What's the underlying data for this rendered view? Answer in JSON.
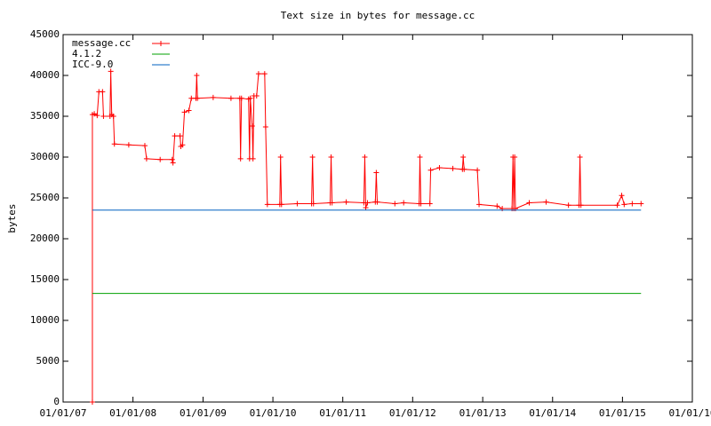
{
  "chart_data": {
    "type": "line",
    "title": "Text size in bytes for message.cc",
    "y_label": "bytes",
    "xlim": [
      "2007-01-01",
      "2016-01-01"
    ],
    "xticks": [
      {
        "value": "2007-01-01",
        "label": "01/01/07"
      },
      {
        "value": "2008-01-01",
        "label": "01/01/08"
      },
      {
        "value": "2009-01-01",
        "label": "01/01/09"
      },
      {
        "value": "2010-01-01",
        "label": "01/01/10"
      },
      {
        "value": "2011-01-01",
        "label": "01/01/11"
      },
      {
        "value": "2012-01-01",
        "label": "01/01/12"
      },
      {
        "value": "2013-01-01",
        "label": "01/01/13"
      },
      {
        "value": "2014-01-01",
        "label": "01/01/14"
      },
      {
        "value": "2015-01-01",
        "label": "01/01/15"
      },
      {
        "value": "2016-01-01",
        "label": "01/01/16"
      }
    ],
    "ylim": [
      0,
      45000
    ],
    "yticks": [
      0,
      5000,
      10000,
      15000,
      20000,
      25000,
      30000,
      35000,
      40000,
      45000
    ],
    "legend_position": "top-left",
    "series": [
      {
        "name": "message.cc",
        "color": "#ff0000",
        "marker": "+",
        "x": [
          "2007-06-03",
          "2007-06-03",
          "2007-06-13",
          "2007-06-28",
          "2007-07-07",
          "2007-07-26",
          "2007-07-31",
          "2007-09-03",
          "2007-09-07",
          "2007-09-12",
          "2007-09-21",
          "2007-09-26",
          "2007-12-10",
          "2008-03-03",
          "2008-03-12",
          "2008-05-22",
          "2008-07-24",
          "2008-07-28",
          "2008-08-06",
          "2008-09-03",
          "2008-09-07",
          "2008-09-16",
          "2008-09-26",
          "2008-10-19",
          "2008-11-01",
          "2008-11-25",
          "2008-11-29",
          "2008-12-03",
          "2009-02-23",
          "2009-05-27",
          "2009-07-12",
          "2009-07-16",
          "2009-07-21",
          "2009-08-27",
          "2009-09-01",
          "2009-09-05",
          "2009-09-15",
          "2009-09-19",
          "2009-09-24",
          "2009-10-08",
          "2009-10-18",
          "2009-11-19",
          "2009-11-24",
          "2009-12-03",
          "2010-02-06",
          "2010-02-10",
          "2010-02-15",
          "2010-05-08",
          "2010-07-22",
          "2010-07-27",
          "2010-08-01",
          "2010-10-27",
          "2010-11-01",
          "2010-11-06",
          "2011-01-19",
          "2011-04-21",
          "2011-04-26",
          "2011-05-01",
          "2011-05-10",
          "2011-06-20",
          "2011-06-25",
          "2011-06-30",
          "2011-09-30",
          "2011-11-15",
          "2012-02-04",
          "2012-02-08",
          "2012-02-13",
          "2012-03-31",
          "2012-04-04",
          "2012-05-20",
          "2012-07-29",
          "2012-09-17",
          "2012-09-21",
          "2012-09-26",
          "2012-12-04",
          "2012-12-13",
          "2013-03-17",
          "2013-04-13",
          "2013-06-03",
          "2013-06-08",
          "2013-06-12",
          "2013-06-17",
          "2013-06-21",
          "2013-09-01",
          "2013-11-28",
          "2014-03-25",
          "2014-05-19",
          "2014-05-24",
          "2014-05-29",
          "2014-12-05",
          "2014-12-28",
          "2015-01-10",
          "2015-02-21",
          "2015-04-08"
        ],
        "values": [
          0,
          35200,
          35300,
          35100,
          38000,
          38000,
          35000,
          35000,
          40500,
          35200,
          35000,
          31600,
          31500,
          31400,
          29800,
          29700,
          29700,
          29300,
          32600,
          32600,
          31300,
          31500,
          35500,
          35700,
          37200,
          37200,
          40000,
          37200,
          37300,
          37200,
          37200,
          29800,
          37200,
          37100,
          29800,
          37200,
          33800,
          29800,
          37500,
          37500,
          40200,
          40200,
          33700,
          24200,
          24200,
          30000,
          24200,
          24300,
          24300,
          30000,
          24300,
          24400,
          30000,
          24400,
          24500,
          24400,
          30000,
          23800,
          24400,
          24500,
          28100,
          24500,
          24300,
          24400,
          24300,
          30000,
          24300,
          24300,
          28400,
          28700,
          28600,
          28500,
          30000,
          28500,
          28400,
          24200,
          24000,
          23700,
          23700,
          30000,
          23700,
          30000,
          23700,
          24400,
          24500,
          24100,
          24100,
          30000,
          24100,
          24100,
          25300,
          24200,
          24300,
          24300
        ]
      },
      {
        "name": "4.1.2",
        "color": "#00a000",
        "x": [
          "2007-06-03",
          "2015-04-08"
        ],
        "values": [
          13300,
          13300
        ]
      },
      {
        "name": "ICC-9.0",
        "color": "#0060c0",
        "x": [
          "2007-06-03",
          "2015-04-08"
        ],
        "values": [
          23500,
          23500
        ]
      }
    ]
  }
}
